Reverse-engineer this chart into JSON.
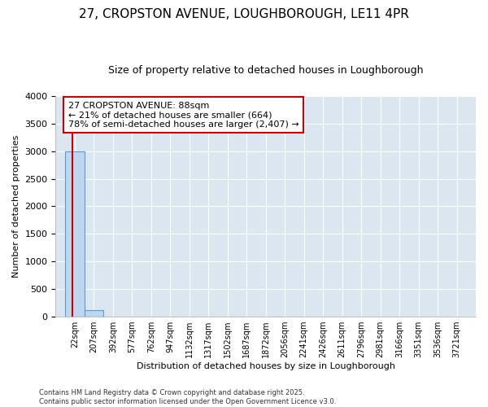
{
  "title1": "27, CROPSTON AVENUE, LOUGHBOROUGH, LE11 4PR",
  "title2": "Size of property relative to detached houses in Loughborough",
  "xlabel": "Distribution of detached houses by size in Loughborough",
  "ylabel": "Number of detached properties",
  "annotation_lines": [
    "27 CROPSTON AVENUE: 88sqm",
    "← 21% of detached houses are smaller (664)",
    "78% of semi-detached houses are larger (2,407) →"
  ],
  "footer1": "Contains HM Land Registry data © Crown copyright and database right 2025.",
  "footer2": "Contains public sector information licensed under the Open Government Licence v3.0.",
  "bins": [
    22,
    207,
    392,
    577,
    762,
    947,
    1132,
    1317,
    1502,
    1687,
    1872,
    2056,
    2241,
    2426,
    2611,
    2796,
    2981,
    3166,
    3351,
    3536,
    3721
  ],
  "bar_heights": [
    3000,
    115,
    0,
    0,
    0,
    0,
    0,
    0,
    0,
    0,
    0,
    0,
    0,
    0,
    0,
    0,
    0,
    0,
    0,
    0
  ],
  "property_size": 88,
  "bar_color": "#bdd7ee",
  "bar_edge_color": "#5b9bd5",
  "vline_color": "#cc0000",
  "annotation_box_edge": "#cc0000",
  "annotation_bg": "#ffffff",
  "fig_background_color": "#ffffff",
  "plot_background_color": "#dce6f1",
  "grid_color": "#ffffff",
  "ylim": [
    0,
    4000
  ],
  "yticks": [
    0,
    500,
    1000,
    1500,
    2000,
    2500,
    3000,
    3500,
    4000
  ],
  "title1_fontsize": 11,
  "title2_fontsize": 9,
  "ylabel_fontsize": 8,
  "xlabel_fontsize": 8,
  "ytick_fontsize": 8,
  "xtick_fontsize": 7,
  "footer_fontsize": 6,
  "annotation_fontsize": 8
}
